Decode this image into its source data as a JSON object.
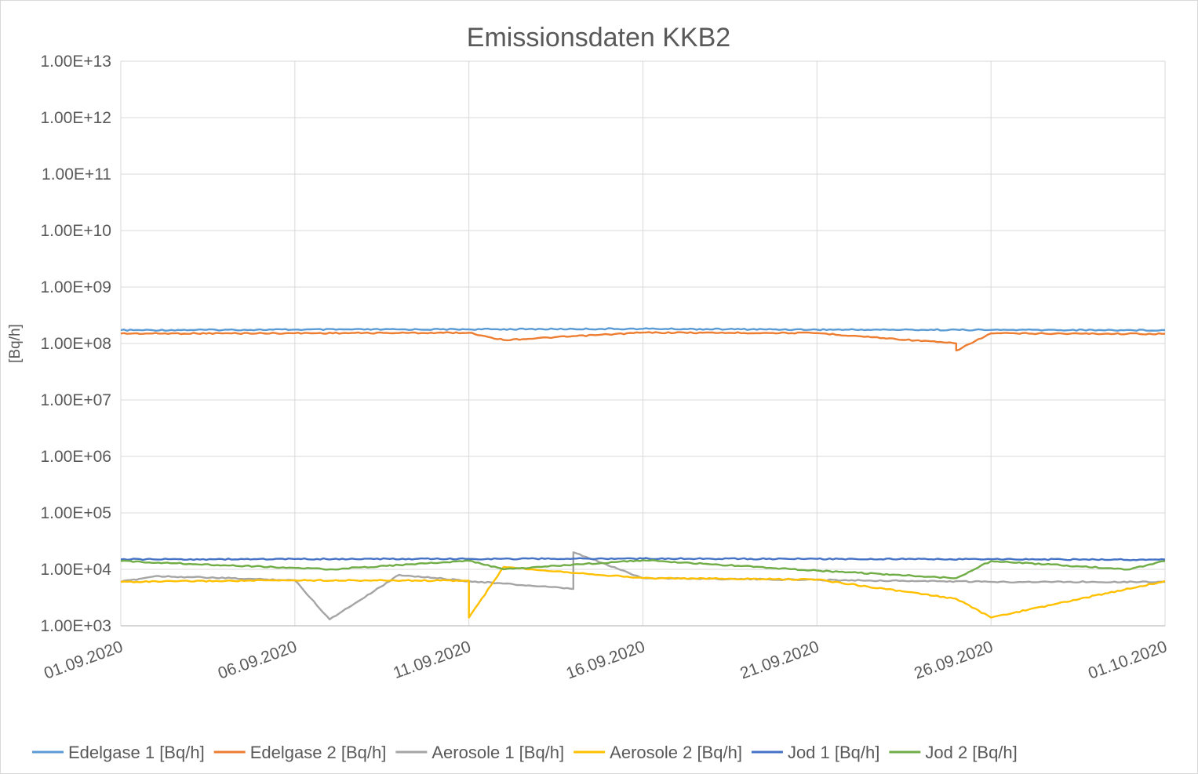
{
  "chart_data": {
    "type": "line",
    "title": "Emissionsdaten KKB2",
    "xlabel": "",
    "ylabel": "[Bq/h]",
    "y_scale": "log",
    "ylim": [
      1000,
      10000000000000
    ],
    "y_ticks": [
      "1.00E+03",
      "1.00E+04",
      "1.00E+05",
      "1.00E+06",
      "1.00E+07",
      "1.00E+08",
      "1.00E+09",
      "1.00E+10",
      "1.00E+11",
      "1.00E+12",
      "1.00E+13"
    ],
    "xlim": [
      "01.09.2020",
      "01.10.2020"
    ],
    "x_ticks": [
      "01.09.2020",
      "06.09.2020",
      "11.09.2020",
      "16.09.2020",
      "21.09.2020",
      "26.09.2020",
      "01.10.2020"
    ],
    "grid": true,
    "legend_position": "bottom",
    "series": [
      {
        "name": "Edelgase 1 [Bq/h]",
        "color": "#5b9bd5",
        "points": [
          [
            "01.09.2020",
            172000000
          ],
          [
            "06.09.2020",
            176000000
          ],
          [
            "11.09.2020",
            178000000
          ],
          [
            "16.09.2020",
            182000000
          ],
          [
            "21.09.2020",
            176000000
          ],
          [
            "26.09.2020",
            174000000
          ],
          [
            "01.10.2020",
            172000000
          ]
        ]
      },
      {
        "name": "Edelgase 2 [Bq/h]",
        "color": "#ed7d31",
        "points": [
          [
            "01.09.2020",
            150000000
          ],
          [
            "06.09.2020",
            152000000
          ],
          [
            "11.09.2020",
            155000000
          ],
          [
            "12.09.2020",
            115000000
          ],
          [
            "16.09.2020",
            156000000
          ],
          [
            "21.09.2020",
            153000000
          ],
          [
            "25.09.2020",
            100000000
          ],
          [
            "25.09.2020",
            75000000
          ],
          [
            "26.09.2020",
            151000000
          ],
          [
            "01.10.2020",
            148000000
          ]
        ]
      },
      {
        "name": "Aerosole 1 [Bq/h]",
        "color": "#a5a5a5",
        "points": [
          [
            "01.09.2020",
            6000
          ],
          [
            "02.09.2020",
            7600
          ],
          [
            "06.09.2020",
            6400
          ],
          [
            "07.09.2020",
            1300
          ],
          [
            "09.09.2020",
            8000
          ],
          [
            "11.09.2020",
            6200
          ],
          [
            "14.09.2020",
            4500
          ],
          [
            "14.09.2020",
            20000
          ],
          [
            "16.09.2020",
            7000
          ],
          [
            "21.09.2020",
            6500
          ],
          [
            "26.09.2020",
            6000
          ],
          [
            "01.10.2020",
            6000
          ]
        ]
      },
      {
        "name": "Aerosole 2 [Bq/h]",
        "color": "#ffc000",
        "points": [
          [
            "01.09.2020",
            6000
          ],
          [
            "06.09.2020",
            6400
          ],
          [
            "11.09.2020",
            6300
          ],
          [
            "11.09.2020",
            1400
          ],
          [
            "12.09.2020",
            11000
          ],
          [
            "16.09.2020",
            7000
          ],
          [
            "21.09.2020",
            6600
          ],
          [
            "25.09.2020",
            3000
          ],
          [
            "26.09.2020",
            1400
          ],
          [
            "01.10.2020",
            6200
          ]
        ]
      },
      {
        "name": "Jod 1 [Bq/h]",
        "color": "#4472c4",
        "points": [
          [
            "01.09.2020",
            15000
          ],
          [
            "06.09.2020",
            15200
          ],
          [
            "11.09.2020",
            15300
          ],
          [
            "16.09.2020",
            15500
          ],
          [
            "21.09.2020",
            15300
          ],
          [
            "26.09.2020",
            15100
          ],
          [
            "01.10.2020",
            14800
          ]
        ]
      },
      {
        "name": "Jod 2 [Bq/h]",
        "color": "#70ad47",
        "points": [
          [
            "01.09.2020",
            14000
          ],
          [
            "07.09.2020",
            10000
          ],
          [
            "11.09.2020",
            14200
          ],
          [
            "12.09.2020",
            10000
          ],
          [
            "16.09.2020",
            14500
          ],
          [
            "21.09.2020",
            9500
          ],
          [
            "25.09.2020",
            7000
          ],
          [
            "26.09.2020",
            14000
          ],
          [
            "30.09.2020",
            10000
          ],
          [
            "01.10.2020",
            14000
          ]
        ]
      }
    ]
  }
}
